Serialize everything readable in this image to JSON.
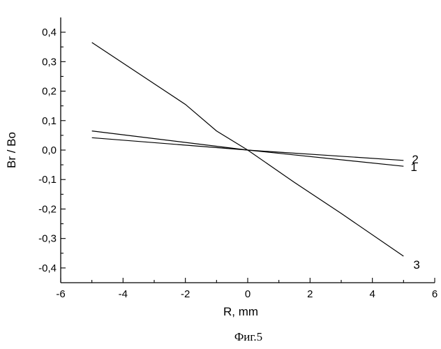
{
  "chart_data": {
    "type": "line",
    "title": "",
    "xlabel": "R, mm",
    "ylabel": "Br / Bo",
    "xlim": [
      -6,
      6
    ],
    "ylim": [
      -0.45,
      0.45
    ],
    "x_ticks": [
      -6,
      -4,
      -2,
      0,
      2,
      4,
      6
    ],
    "y_ticks": [
      -0.4,
      -0.3,
      -0.2,
      -0.1,
      0.0,
      0.1,
      0.2,
      0.3,
      0.4
    ],
    "x_tick_labels": [
      "-6",
      "-4",
      "-2",
      "0",
      "2",
      "4",
      "6"
    ],
    "y_tick_labels": [
      "-0,4",
      "-0,3",
      "-0,2",
      "-0,1",
      "0,0",
      "0,1",
      "0,2",
      "0,3",
      "0,4"
    ],
    "series": [
      {
        "name": "1",
        "x": [
          -5,
          0,
          5
        ],
        "y": [
          0.065,
          0.0,
          -0.055
        ]
      },
      {
        "name": "2",
        "x": [
          -5,
          0,
          5
        ],
        "y": [
          0.042,
          0.0,
          -0.035
        ]
      },
      {
        "name": "3",
        "x": [
          -5,
          -2,
          -1,
          0,
          1.5,
          3,
          5
        ],
        "y": [
          0.365,
          0.155,
          0.065,
          0.0,
          -0.11,
          -0.215,
          -0.36
        ]
      }
    ],
    "caption": "Фиг.5"
  }
}
